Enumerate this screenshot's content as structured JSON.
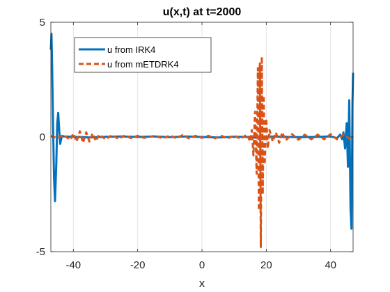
{
  "chart_data": {
    "type": "line",
    "title": "u(x,t) at t=2000",
    "xlabel": "x",
    "ylabel": "",
    "xlim": [
      -47,
      47
    ],
    "ylim": [
      -5,
      5
    ],
    "xticks": [
      -40,
      -20,
      0,
      20,
      40
    ],
    "yticks": [
      -5,
      0,
      5
    ],
    "xtick_labels": [
      "-40",
      "-20",
      "0",
      "20",
      "40"
    ],
    "ytick_labels": [
      "-5",
      "0",
      "5"
    ],
    "grid": "vertical",
    "legend_position": "top-left",
    "series": [
      {
        "name": "u from IRK4",
        "color": "#0072BD",
        "style": "solid",
        "points": [
          [
            -47,
            3.8
          ],
          [
            -46.8,
            4.5
          ],
          [
            -46.6,
            3.2
          ],
          [
            -46.3,
            0.5
          ],
          [
            -46.0,
            -1.8
          ],
          [
            -45.7,
            -2.8
          ],
          [
            -45.3,
            -1.2
          ],
          [
            -45.0,
            0.6
          ],
          [
            -44.7,
            1.05
          ],
          [
            -44.4,
            0.3
          ],
          [
            -44.1,
            -0.3
          ],
          [
            -43.8,
            -0.1
          ],
          [
            -43.5,
            0.05
          ],
          [
            -43,
            0.02
          ],
          [
            -40,
            0.01
          ],
          [
            -35,
            -0.02
          ],
          [
            -30,
            0.01
          ],
          [
            -25,
            0.02
          ],
          [
            -20,
            0.0
          ],
          [
            -15,
            0.02
          ],
          [
            -10,
            -0.01
          ],
          [
            -5,
            0.02
          ],
          [
            0,
            0.0
          ],
          [
            5,
            -0.02
          ],
          [
            10,
            0.01
          ],
          [
            15,
            0.0
          ],
          [
            18,
            -0.05
          ],
          [
            20,
            0.02
          ],
          [
            25,
            0.01
          ],
          [
            30,
            -0.01
          ],
          [
            35,
            0.0
          ],
          [
            40,
            0.02
          ],
          [
            42,
            -0.05
          ],
          [
            43,
            0.1
          ],
          [
            43.6,
            -0.1
          ],
          [
            44,
            0.2
          ],
          [
            44.5,
            -0.5
          ],
          [
            45,
            0.6
          ],
          [
            45.4,
            -1.3
          ],
          [
            45.8,
            1.6
          ],
          [
            46.2,
            -3.1
          ],
          [
            46.5,
            -4.0
          ],
          [
            46.8,
            1.5
          ],
          [
            47,
            2.8
          ]
        ]
      },
      {
        "name": "u from mETDRK4",
        "color": "#D95319",
        "style": "dashed",
        "points": [
          [
            -47,
            0.05
          ],
          [
            -45,
            -0.05
          ],
          [
            -43,
            0.08
          ],
          [
            -41,
            -0.12
          ],
          [
            -40,
            0.15
          ],
          [
            -39,
            -0.2
          ],
          [
            -38,
            0.25
          ],
          [
            -37,
            -0.25
          ],
          [
            -36,
            0.2
          ],
          [
            -35,
            -0.2
          ],
          [
            -34,
            0.15
          ],
          [
            -33,
            -0.18
          ],
          [
            -32,
            0.1
          ],
          [
            -30,
            -0.1
          ],
          [
            -28,
            0.08
          ],
          [
            -26,
            -0.08
          ],
          [
            -24,
            0.06
          ],
          [
            -22,
            -0.05
          ],
          [
            -20,
            0.05
          ],
          [
            -18,
            -0.04
          ],
          [
            -15,
            0.04
          ],
          [
            -12,
            -0.05
          ],
          [
            -10,
            0.06
          ],
          [
            -8,
            -0.05
          ],
          [
            -6,
            0.08
          ],
          [
            -4,
            -0.06
          ],
          [
            -2,
            0.05
          ],
          [
            0,
            -0.04
          ],
          [
            2,
            0.05
          ],
          [
            4,
            -0.06
          ],
          [
            6,
            0.05
          ],
          [
            8,
            -0.06
          ],
          [
            10,
            0.06
          ],
          [
            12,
            -0.08
          ],
          [
            14,
            0.1
          ],
          [
            15,
            -0.2
          ],
          [
            15.5,
            0.3
          ],
          [
            16,
            -0.8
          ],
          [
            16.5,
            1.1
          ],
          [
            17,
            -1.6
          ],
          [
            17.4,
            3.0
          ],
          [
            17.7,
            -3.2
          ],
          [
            18.0,
            3.2
          ],
          [
            18.3,
            -4.8
          ],
          [
            18.6,
            3.5
          ],
          [
            18.9,
            -2.5
          ],
          [
            19.2,
            1.8
          ],
          [
            19.5,
            -1.2
          ],
          [
            20,
            0.8
          ],
          [
            20.5,
            -0.5
          ],
          [
            21,
            0.3
          ],
          [
            22,
            -0.2
          ],
          [
            23,
            0.2
          ],
          [
            24,
            -0.25
          ],
          [
            25,
            0.2
          ],
          [
            26,
            -0.15
          ],
          [
            28,
            0.12
          ],
          [
            30,
            -0.12
          ],
          [
            32,
            0.1
          ],
          [
            34,
            -0.1
          ],
          [
            36,
            0.1
          ],
          [
            38,
            -0.1
          ],
          [
            40,
            0.12
          ],
          [
            42,
            -0.1
          ],
          [
            44,
            0.1
          ],
          [
            46,
            -0.08
          ],
          [
            47,
            0.05
          ]
        ]
      }
    ]
  }
}
